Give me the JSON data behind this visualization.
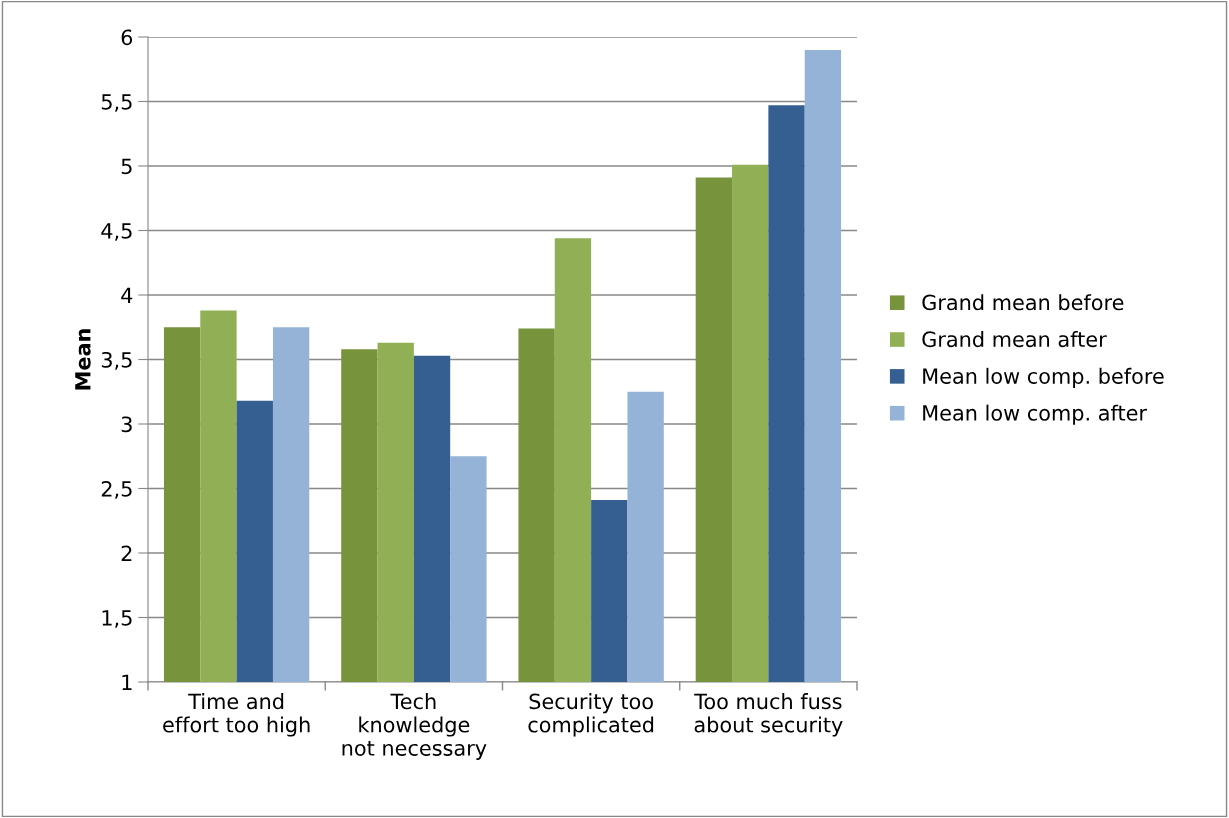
{
  "chart_data": {
    "type": "bar",
    "ylabel": "Mean",
    "categories": [
      "Time and\neffort too high",
      "Tech\nknowledge\nnot necessary",
      "Security too\ncomplicated",
      "Too much fuss\nabout security"
    ],
    "series": [
      {
        "name": "Grand mean before",
        "color": "#77933c",
        "values": [
          3.75,
          3.58,
          3.74,
          4.91
        ]
      },
      {
        "name": "Grand mean after",
        "color": "#91af55",
        "values": [
          3.88,
          3.63,
          4.44,
          5.01
        ]
      },
      {
        "name": "Mean low comp. before",
        "color": "#355f91",
        "values": [
          3.18,
          3.53,
          2.41,
          5.47
        ]
      },
      {
        "name": "Mean low comp. after",
        "color": "#95b3d7",
        "values": [
          3.75,
          2.75,
          3.25,
          5.9
        ]
      }
    ],
    "ylim": [
      1,
      6
    ],
    "yticks": [
      1,
      {
        "value": 1.5,
        "label": "1,5"
      },
      2,
      {
        "value": 2.5,
        "label": "2,5"
      },
      3,
      {
        "value": 3.5,
        "label": "3,5"
      },
      4,
      {
        "value": 4.5,
        "label": "4,5"
      },
      5,
      {
        "value": 5.5,
        "label": "5,5"
      },
      6
    ],
    "grid": "y",
    "legend": "right"
  }
}
